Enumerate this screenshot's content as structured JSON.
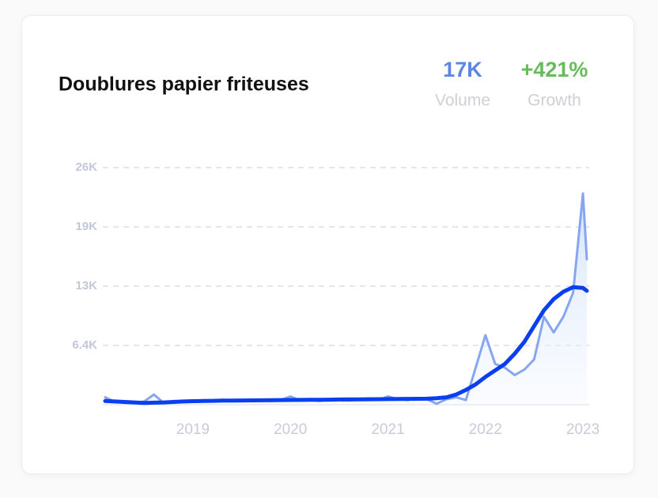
{
  "chart_data": {
    "type": "line",
    "title": "Doublures papier friteuses",
    "stats": [
      {
        "value": "17K",
        "label": "Volume",
        "color": "#5b86e5"
      },
      {
        "value": "+421%",
        "label": "Growth",
        "color": "#68bb5c"
      }
    ],
    "x": [
      2018.1,
      2018.2,
      2018.3,
      2018.4,
      2018.5,
      2018.6,
      2018.7,
      2018.8,
      2018.9,
      2019.0,
      2019.1,
      2019.2,
      2019.3,
      2019.4,
      2019.5,
      2019.6,
      2019.7,
      2019.8,
      2019.9,
      2020.0,
      2020.1,
      2020.2,
      2020.3,
      2020.4,
      2020.5,
      2020.6,
      2020.7,
      2020.8,
      2020.9,
      2021.0,
      2021.1,
      2021.2,
      2021.3,
      2021.4,
      2021.5,
      2021.6,
      2021.7,
      2021.8,
      2021.9,
      2022.0,
      2022.1,
      2022.2,
      2022.3,
      2022.4,
      2022.5,
      2022.6,
      2022.7,
      2022.8,
      2022.9,
      2023.0,
      2023.04
    ],
    "series": [
      {
        "color": "#86a6f0",
        "values": [
          800,
          300,
          200,
          200,
          350,
          1100,
          200,
          400,
          350,
          300,
          450,
          400,
          500,
          450,
          400,
          500,
          450,
          400,
          500,
          900,
          450,
          500,
          400,
          600,
          500,
          450,
          550,
          700,
          500,
          900,
          600,
          500,
          700,
          600,
          100,
          600,
          800,
          500,
          4000,
          7500,
          4400,
          4000,
          3200,
          3800,
          4900,
          9500,
          7800,
          9500,
          12100,
          22800,
          15700
        ]
      },
      {
        "color": "#0a3ff0",
        "values": [
          400,
          350,
          300,
          250,
          200,
          220,
          250,
          300,
          350,
          380,
          400,
          420,
          440,
          450,
          460,
          470,
          480,
          490,
          500,
          510,
          520,
          530,
          540,
          550,
          560,
          570,
          580,
          590,
          600,
          610,
          620,
          630,
          640,
          650,
          700,
          800,
          1100,
          1600,
          2200,
          3000,
          3700,
          4400,
          5500,
          6800,
          8500,
          10200,
          11400,
          12200,
          12700,
          12600,
          12300
        ]
      }
    ],
    "xlim": [
      2018.1,
      2023.04
    ],
    "xticks": [
      2019,
      2020,
      2021,
      2022,
      2023
    ],
    "ylim": [
      0,
      25600
    ],
    "yticks": [
      {
        "value": 6400,
        "label": "6.4K"
      },
      {
        "value": 12800,
        "label": "13K"
      },
      {
        "value": 19200,
        "label": "19K"
      },
      {
        "value": 25600,
        "label": "26K"
      }
    ],
    "grid": true
  }
}
